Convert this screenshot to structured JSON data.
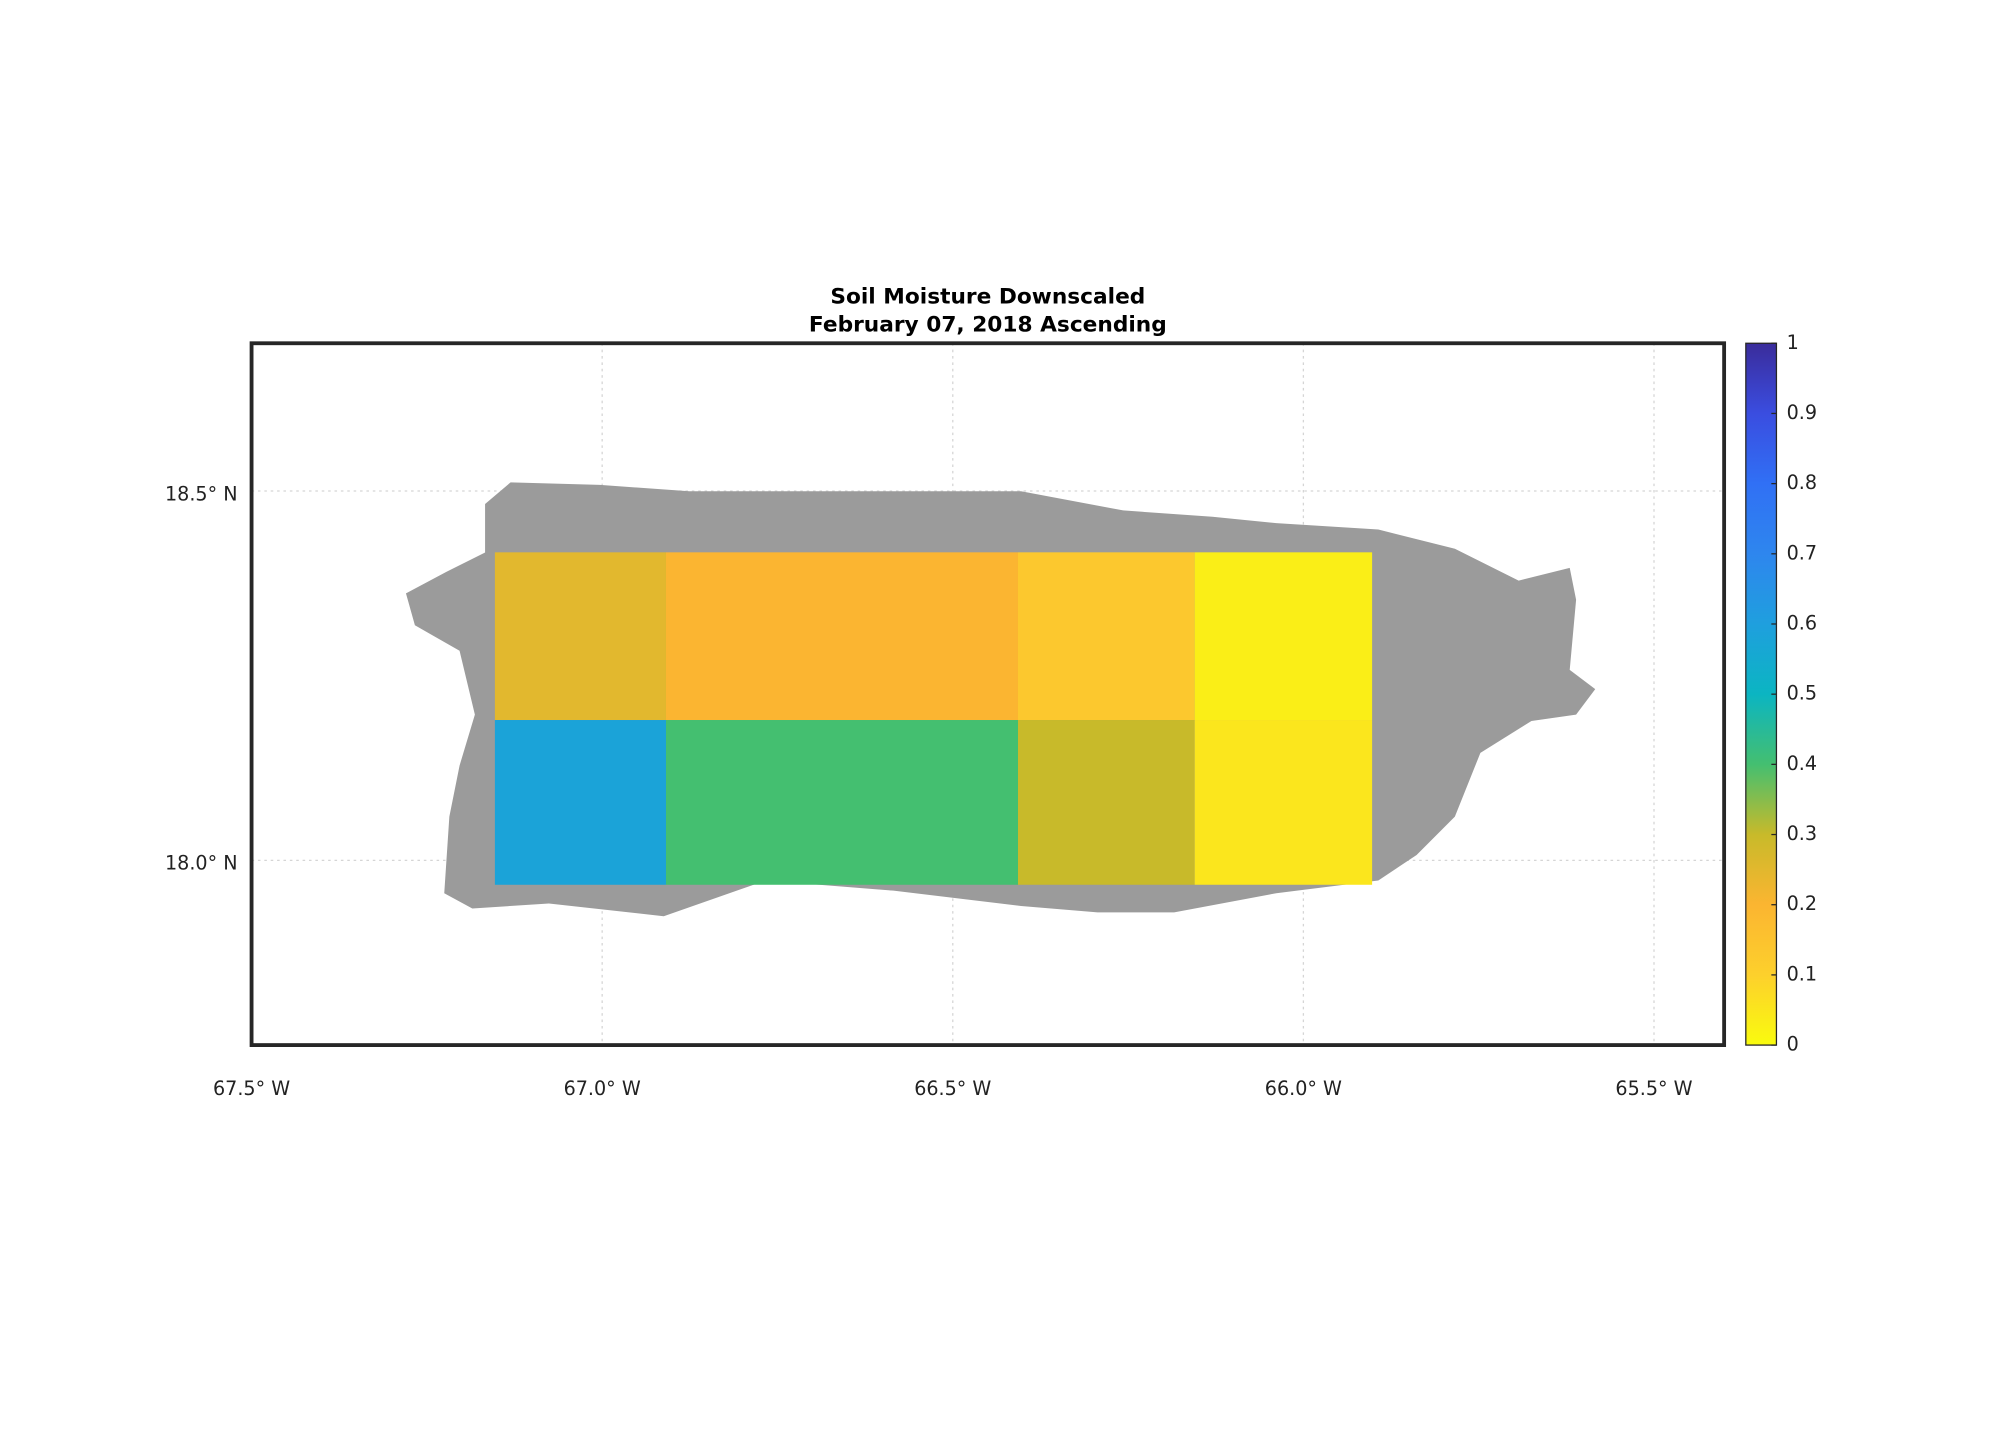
{
  "chart_data": {
    "type": "heatmap",
    "title": "Soil Moisture Downscaled",
    "subtitle": "February 07, 2018 Ascending",
    "xlim": [
      -67.5,
      -65.4
    ],
    "ylim": [
      17.75,
      18.7
    ],
    "xticks": [
      {
        "value": -67.5,
        "label": "67.5° W"
      },
      {
        "value": -67.0,
        "label": "67.0° W"
      },
      {
        "value": -66.5,
        "label": "66.5° W"
      },
      {
        "value": -66.0,
        "label": "66.0° W"
      },
      {
        "value": -65.5,
        "label": "65.5° W"
      }
    ],
    "yticks": [
      {
        "value": 18.0,
        "label": "18.0° N"
      },
      {
        "value": 18.5,
        "label": "18.5° N"
      }
    ],
    "grid": true,
    "clim": [
      0,
      1
    ],
    "cticks": [
      0,
      0.1,
      0.2,
      0.3,
      0.4,
      0.5,
      0.6,
      0.7,
      0.8,
      0.9,
      1
    ],
    "colormap": [
      "#f9fb0e",
      "#fdd02c",
      "#fbb531",
      "#c8ba2a",
      "#44bf70",
      "#0bb5c2",
      "#1f9fde",
      "#2e86ee",
      "#3070f5",
      "#3a4de0",
      "#3a2c9b"
    ],
    "tiles": [
      {
        "lon": [
          -67.153,
          -66.909
        ],
        "lat": [
          18.19,
          18.417
        ],
        "value": 0.25
      },
      {
        "lon": [
          -66.909,
          -66.407
        ],
        "lat": [
          18.19,
          18.417
        ],
        "value": 0.2
      },
      {
        "lon": [
          -66.407,
          -66.155
        ],
        "lat": [
          18.19,
          18.417
        ],
        "value": 0.13
      },
      {
        "lon": [
          -66.155,
          -65.902
        ],
        "lat": [
          18.19,
          18.417
        ],
        "value": 0.03
      },
      {
        "lon": [
          -67.153,
          -66.909
        ],
        "lat": [
          17.967,
          18.19
        ],
        "value": 0.58
      },
      {
        "lon": [
          -66.909,
          -66.407
        ],
        "lat": [
          17.967,
          18.19
        ],
        "value": 0.4
      },
      {
        "lon": [
          -66.407,
          -66.155
        ],
        "lat": [
          17.967,
          18.19
        ],
        "value": 0.3
      },
      {
        "lon": [
          -66.155,
          -65.902
        ],
        "lat": [
          17.967,
          18.19
        ],
        "value": 0.05
      }
    ]
  }
}
